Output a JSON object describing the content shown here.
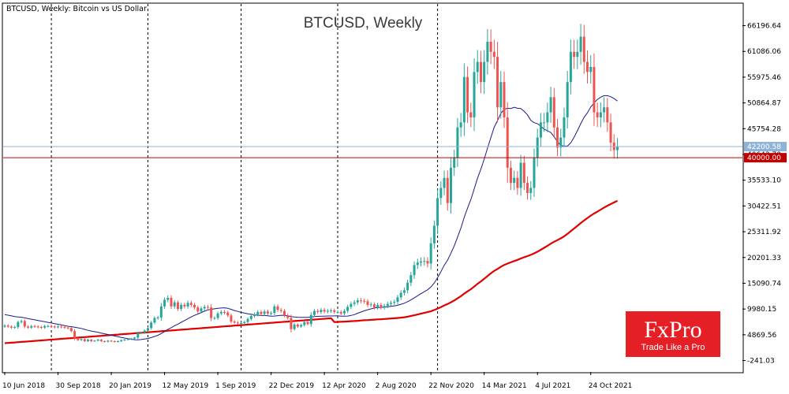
{
  "header": {
    "text": "BTCUSD, Weekly:  Bitcoin vs US Dollar"
  },
  "logo": {
    "brand": "FxPro",
    "tagline": "Trade Like a Pro",
    "bg_color": "#e41f26"
  },
  "colors": {
    "up_candle": "#26a69a",
    "down_candle": "#ef5350",
    "ma_short": "#1a1a8c",
    "ma_long": "#e00000",
    "level_line": "#c00000",
    "current_line": "#8fb3d6"
  },
  "chart_data": {
    "type": "candlestick",
    "title": "BTCUSD, Weekly",
    "ylim": [
      -2500,
      70500
    ],
    "y_ticks": [
      66196.64,
      61086.06,
      55975.46,
      50864.87,
      45754.28,
      40643.7,
      35533.1,
      30422.51,
      25311.92,
      20201.33,
      15090.74,
      9980.15,
      4869.56,
      -241.03
    ],
    "y_tick_labels": [
      "66196.64",
      "61086.06",
      "55975.46",
      "50864.87",
      "45754.28",
      "40643.70",
      "35533.10",
      "30422.51",
      "25311.92",
      "20201.33",
      "15090.74",
      "9980.15",
      "4869.56",
      "-241.03"
    ],
    "x_labels": [
      "10 Jun 2018",
      "30 Sep 2018",
      "20 Jan 2019",
      "12 May 2019",
      "1 Sep 2019",
      "22 Dec 2019",
      "12 Apr 2020",
      "2 Aug 2020",
      "22 Nov 2020",
      "14 Mar 2021",
      "4 Jul 2021",
      "24 Oct 2021"
    ],
    "x_label_index": [
      0,
      16,
      32,
      48,
      64,
      80,
      96,
      112,
      128,
      144,
      160,
      176
    ],
    "separator_index": [
      14,
      43,
      71,
      100,
      130
    ],
    "key_level": {
      "value": 40000.0,
      "label": "40000.00"
    },
    "current_price": {
      "value": 42200.58,
      "label": "42200.58"
    },
    "closes": [
      6700,
      6500,
      6300,
      6400,
      7400,
      7600,
      6500,
      6300,
      6600,
      6500,
      6400,
      6300,
      6600,
      6600,
      6500,
      6400,
      6500,
      6400,
      6300,
      6200,
      5600,
      4200,
      3800,
      4000,
      3600,
      3900,
      3600,
      3700,
      3900,
      3600,
      3500,
      3700,
      3600,
      3500,
      3600,
      3800,
      3900,
      4000,
      4100,
      4300,
      5200,
      5300,
      5700,
      6200,
      7300,
      8200,
      8300,
      10500,
      11800,
      12200,
      10500,
      11300,
      10000,
      10800,
      10500,
      11200,
      10800,
      10300,
      9500,
      10100,
      10400,
      10300,
      8200,
      8200,
      9100,
      9400,
      9300,
      8700,
      7500,
      7300,
      7200,
      7200,
      7400,
      8000,
      8600,
      8900,
      9400,
      9000,
      9500,
      9100,
      9200,
      10500,
      9800,
      9600,
      8700,
      8200,
      6000,
      6900,
      6500,
      6800,
      7400,
      7000,
      8800,
      9600,
      9400,
      9800,
      9500,
      9600,
      9700,
      9400,
      9400,
      9100,
      9600,
      10400,
      11000,
      11300,
      11700,
      11600,
      11500,
      10800,
      10900,
      10300,
      10800,
      10300,
      10600,
      11000,
      11200,
      11400,
      12300,
      13200,
      13700,
      15200,
      16700,
      18700,
      19200,
      19400,
      19500,
      19000,
      23000,
      26500,
      32000,
      34000,
      36000,
      31000,
      38000,
      40000,
      46000,
      47000,
      56000,
      49000,
      48000,
      57000,
      59000,
      55000,
      59000,
      63000,
      61000,
      60000,
      50000,
      55000,
      48000,
      38000,
      35000,
      36000,
      34000,
      39000,
      35000,
      33000,
      34000,
      40000,
      44000,
      47000,
      47000,
      49000,
      52000,
      46000,
      42000,
      44000,
      48000,
      55000,
      61000,
      60000,
      61000,
      64000,
      59000,
      57000,
      58000,
      49000,
      48000,
      49000,
      50000,
      47000,
      43000,
      41500,
      42200
    ],
    "sma_short_period": 20,
    "sma_long_period": 100,
    "sma_long_seed_start": 3200,
    "sma_long_seed_end": 8200
  }
}
